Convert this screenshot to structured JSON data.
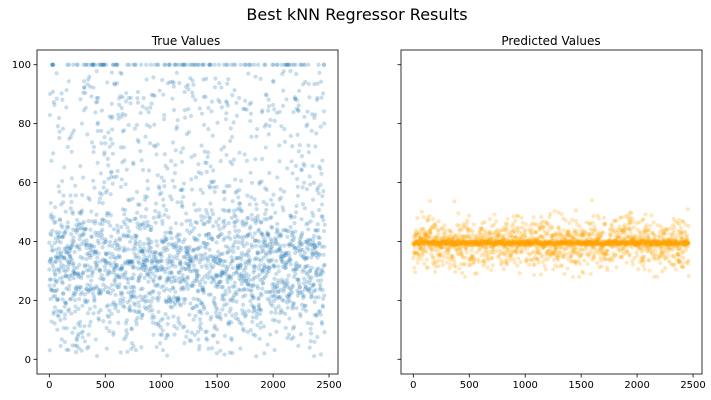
{
  "chart_data": {
    "title": "Best kNN Regressor Results",
    "sharey": true,
    "subplots": [
      {
        "type": "scatter",
        "title": "True Values",
        "color": "#1f77b4",
        "alpha": 0.25,
        "n_points": 2463,
        "xlim": [
          -110,
          2580
        ],
        "ylim": [
          -5,
          105
        ],
        "xticks": [
          0,
          500,
          1000,
          1500,
          2000,
          2500
        ],
        "yticks": [
          0,
          20,
          40,
          60,
          80,
          100
        ],
        "show_ytick_labels": true,
        "distribution": {
          "description": "Scattered between 1 and 100, densest between 20 and 45, with a row of points at exactly 100",
          "dense_band": [
            20,
            45
          ],
          "range": [
            1,
            100
          ],
          "cap_value": 100
        }
      },
      {
        "type": "scatter",
        "title": "Predicted Values",
        "color": "#ffa500",
        "alpha": 0.25,
        "n_points": 2463,
        "xlim": [
          -110,
          2580
        ],
        "ylim": [
          -5,
          105
        ],
        "xticks": [
          0,
          500,
          1000,
          1500,
          2000,
          2500
        ],
        "yticks": [
          0,
          20,
          40,
          60,
          80,
          100
        ],
        "show_ytick_labels": false,
        "distribution": {
          "description": "Concentrated in a narrow band around 40, ranging roughly 28 to 54",
          "center": 39.5,
          "range": [
            28,
            54
          ]
        }
      }
    ]
  }
}
